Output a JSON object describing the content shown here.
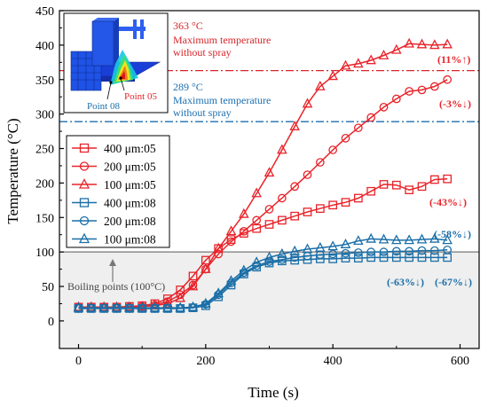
{
  "chart_data": {
    "type": "line",
    "xlabel": "Time (s)",
    "ylabel": "Temperature (°C)",
    "xlim": [
      -30,
      630
    ],
    "ylim": [
      -40,
      450
    ],
    "xticks": [
      0,
      200,
      400,
      600
    ],
    "yticks": [
      0,
      50,
      100,
      150,
      200,
      250,
      300,
      350,
      400,
      450
    ],
    "grid": false,
    "legend_position": "left",
    "colors": {
      "red": "#e8242a",
      "blue": "#1a6fa8",
      "ref_red": "#d6262b",
      "ref_blue": "#1c6fb0",
      "boiling_line": "#777777",
      "shade": "#efefef"
    },
    "reference_lines": [
      {
        "y": 363,
        "color": "#d6262b",
        "style": "dash-dot",
        "label_value": "363 °C",
        "label_text": "Maximum temperature\nwithout spray"
      },
      {
        "y": 289,
        "color": "#1c6fb0",
        "style": "dash-dot",
        "label_value": "289 °C",
        "label_text": "Maximum temperature\nwithout spray"
      },
      {
        "y": 100,
        "color": "#777777",
        "style": "solid",
        "label_text": "Boiling points (100°C)"
      }
    ],
    "series": [
      {
        "name": "400 μm:05",
        "color": "#e8242a",
        "marker": "square",
        "x": [
          0,
          20,
          40,
          60,
          80,
          100,
          120,
          140,
          160,
          180,
          200,
          220,
          240,
          260,
          280,
          300,
          320,
          340,
          360,
          380,
          400,
          420,
          440,
          460,
          480,
          500,
          520,
          540,
          560,
          580
        ],
        "y": [
          20,
          20,
          20,
          20,
          21,
          22,
          25,
          32,
          45,
          65,
          88,
          105,
          118,
          127,
          134,
          140,
          146,
          152,
          158,
          163,
          168,
          172,
          178,
          188,
          198,
          197,
          190,
          195,
          205,
          206
        ]
      },
      {
        "name": "200 μm:05",
        "color": "#e8242a",
        "marker": "circle",
        "x": [
          0,
          20,
          40,
          60,
          80,
          100,
          120,
          140,
          160,
          180,
          200,
          220,
          240,
          260,
          280,
          300,
          320,
          340,
          360,
          380,
          400,
          420,
          440,
          460,
          480,
          500,
          520,
          540,
          560,
          580
        ],
        "y": [
          20,
          20,
          20,
          20,
          20,
          21,
          23,
          28,
          38,
          52,
          75,
          97,
          115,
          130,
          146,
          162,
          178,
          195,
          212,
          230,
          248,
          265,
          280,
          295,
          310,
          322,
          333,
          335,
          340,
          350
        ]
      },
      {
        "name": "100 μm:05",
        "color": "#e8242a",
        "marker": "triangle",
        "x": [
          0,
          20,
          40,
          60,
          80,
          100,
          120,
          140,
          160,
          180,
          200,
          220,
          240,
          260,
          280,
          300,
          320,
          340,
          360,
          380,
          400,
          420,
          440,
          460,
          480,
          500,
          520,
          540,
          560,
          580
        ],
        "y": [
          20,
          20,
          20,
          20,
          20,
          21,
          22,
          25,
          33,
          50,
          75,
          105,
          130,
          155,
          185,
          215,
          248,
          282,
          315,
          340,
          355,
          370,
          373,
          378,
          385,
          393,
          402,
          401,
          400,
          401
        ]
      },
      {
        "name": "400 μm:08",
        "color": "#1a6fa8",
        "marker": "square",
        "x": [
          0,
          20,
          40,
          60,
          80,
          100,
          120,
          140,
          160,
          180,
          200,
          220,
          240,
          260,
          280,
          300,
          320,
          340,
          360,
          380,
          400,
          420,
          440,
          460,
          480,
          500,
          520,
          540,
          560,
          580
        ],
        "y": [
          18,
          18,
          18,
          18,
          18,
          18,
          18,
          18,
          18,
          19,
          22,
          35,
          52,
          68,
          78,
          84,
          87,
          88,
          89,
          90,
          90,
          91,
          91,
          92,
          92,
          92,
          92,
          92,
          92,
          92
        ]
      },
      {
        "name": "200 μm:08",
        "color": "#1a6fa8",
        "marker": "circle",
        "x": [
          0,
          20,
          40,
          60,
          80,
          100,
          120,
          140,
          160,
          180,
          200,
          220,
          240,
          260,
          280,
          300,
          320,
          340,
          360,
          380,
          400,
          420,
          440,
          460,
          480,
          500,
          520,
          540,
          560,
          580
        ],
        "y": [
          18,
          18,
          18,
          18,
          18,
          18,
          18,
          18,
          18,
          19,
          24,
          38,
          55,
          70,
          80,
          86,
          89,
          92,
          94,
          96,
          97,
          98,
          99,
          100,
          100,
          101,
          101,
          102,
          102,
          103
        ]
      },
      {
        "name": "100 μm:08",
        "color": "#1a6fa8",
        "marker": "triangle",
        "x": [
          0,
          20,
          40,
          60,
          80,
          100,
          120,
          140,
          160,
          180,
          200,
          220,
          240,
          260,
          280,
          300,
          320,
          340,
          360,
          380,
          400,
          420,
          440,
          460,
          480,
          500,
          520,
          540,
          560,
          580
        ],
        "y": [
          19,
          19,
          19,
          19,
          19,
          19,
          19,
          19,
          19,
          20,
          25,
          40,
          58,
          73,
          85,
          92,
          97,
          101,
          104,
          106,
          108,
          111,
          116,
          119,
          118,
          117,
          117,
          118,
          119,
          117
        ]
      }
    ],
    "annotations": [
      {
        "text": "(11%↑)",
        "color": "#e8242a"
      },
      {
        "text": "(-3%↓)",
        "color": "#e8242a"
      },
      {
        "text": "(-43%↓)",
        "color": "#e8242a"
      },
      {
        "text": "(-58%↓)",
        "color": "#1a6fa8"
      },
      {
        "text": "(-63%↓)",
        "color": "#1a6fa8"
      },
      {
        "text": "(-67%↓)",
        "color": "#1a6fa8"
      }
    ],
    "inset_labels": [
      "Point 05",
      "Point 08"
    ]
  }
}
